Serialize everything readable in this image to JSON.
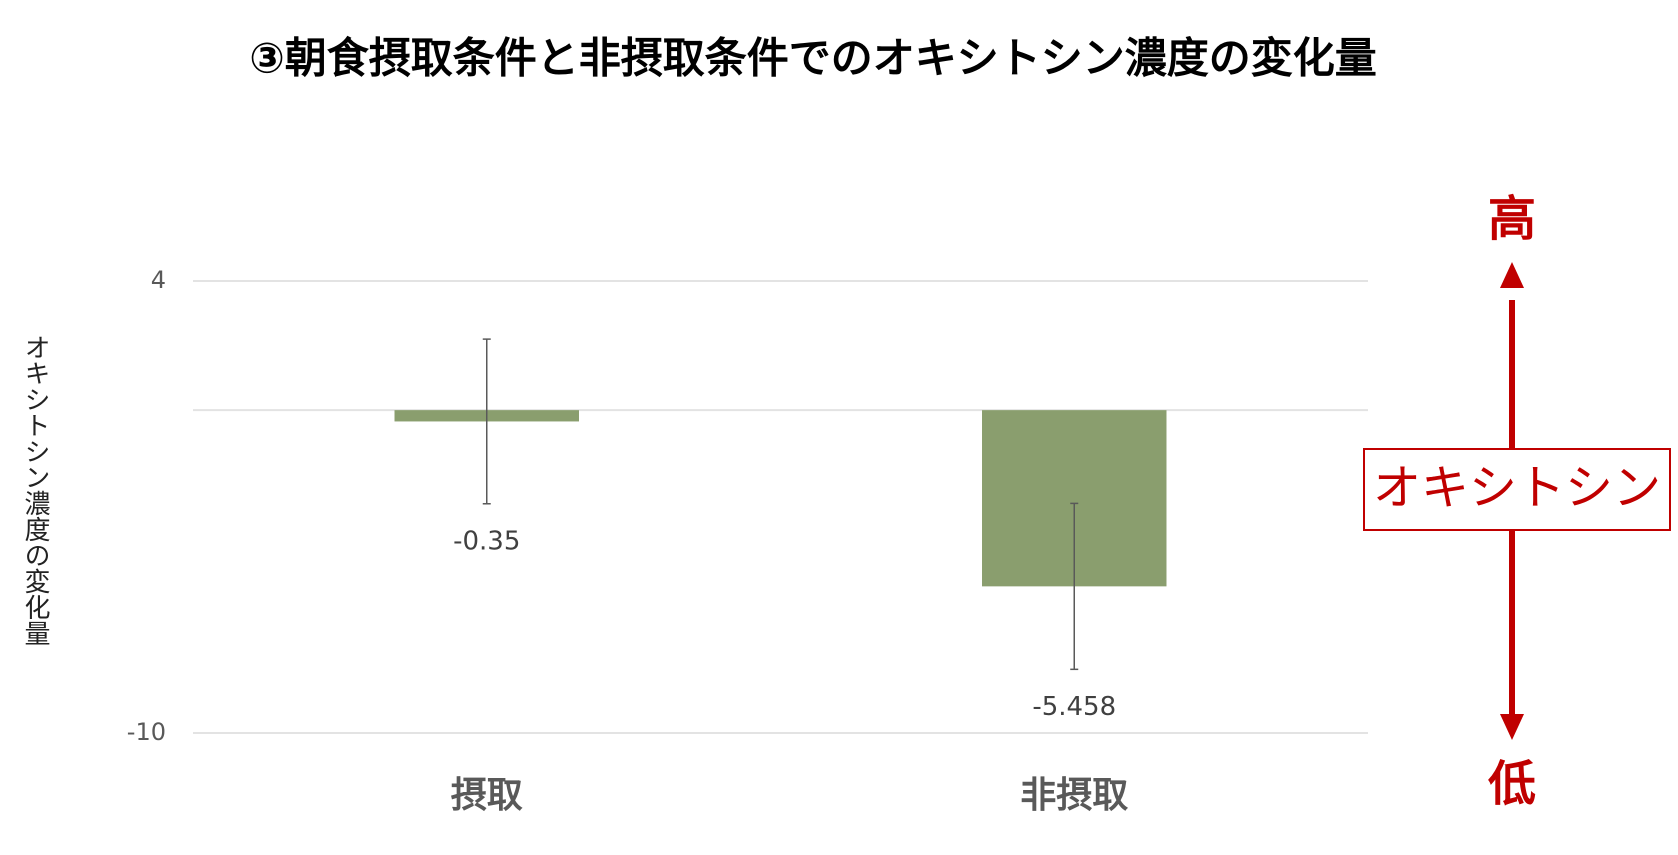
{
  "chart_data": {
    "type": "bar",
    "title": "③朝食摂取条件と非摂取条件でのオキシトシン濃度の変化量",
    "y_label": "オキシトシン濃度の変化量",
    "categories": [
      "摂取",
      "非摂取"
    ],
    "values": [
      -0.35,
      -5.458
    ],
    "errors": [
      2.55,
      2.57
    ],
    "color": "#8a9e6e",
    "ylim": [
      -10,
      4
    ],
    "yticks": [
      -10,
      4
    ],
    "grid": true,
    "annotations": [
      "高",
      "オキシトシン",
      "低"
    ]
  }
}
